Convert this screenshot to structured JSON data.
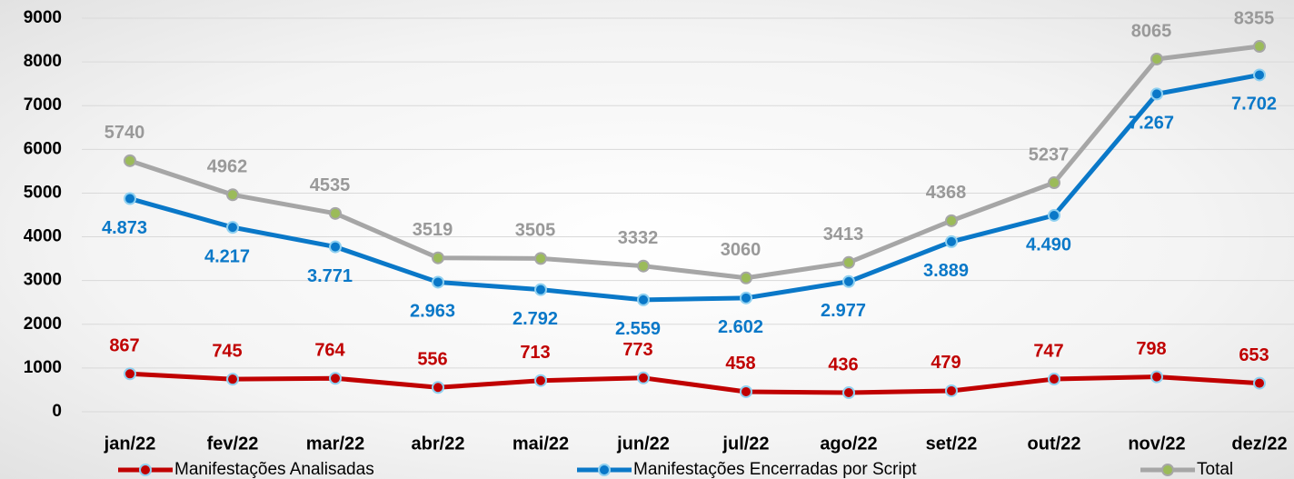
{
  "chart_data": {
    "type": "line",
    "categories": [
      "jan/22",
      "fev/22",
      "mar/22",
      "abr/22",
      "mai/22",
      "jun/22",
      "jul/22",
      "ago/22",
      "set/22",
      "out/22",
      "nov/22",
      "dez/22"
    ],
    "series": [
      {
        "name": "Manifestações Analisadas",
        "color": "#c00000",
        "marker_color": "#c00000",
        "values": [
          867,
          745,
          764,
          556,
          713,
          773,
          458,
          436,
          479,
          747,
          798,
          653
        ]
      },
      {
        "name": "Manifestações Encerradas por Script",
        "color": "#0a78c8",
        "marker_color": "#0a78c8",
        "values": [
          4873,
          4217,
          3771,
          2963,
          2792,
          2559,
          2602,
          2977,
          3889,
          4490,
          7267,
          7702
        ],
        "value_labels": [
          "4.873",
          "4.217",
          "3.771",
          "2.963",
          "2.792",
          "2.559",
          "2.602",
          "2.977",
          "3.889",
          "4.490",
          "7.267",
          "7.702"
        ]
      },
      {
        "name": "Total",
        "color": "#a6a6a6",
        "marker_color": "#9bbb59",
        "values": [
          5740,
          4962,
          4535,
          3519,
          3505,
          3332,
          3060,
          3413,
          4368,
          5237,
          8065,
          8355
        ]
      }
    ],
    "ylim": [
      0,
      9000
    ],
    "yticks": [
      0,
      1000,
      2000,
      3000,
      4000,
      5000,
      6000,
      7000,
      8000,
      9000
    ],
    "grid": true,
    "legend": "bottom"
  }
}
